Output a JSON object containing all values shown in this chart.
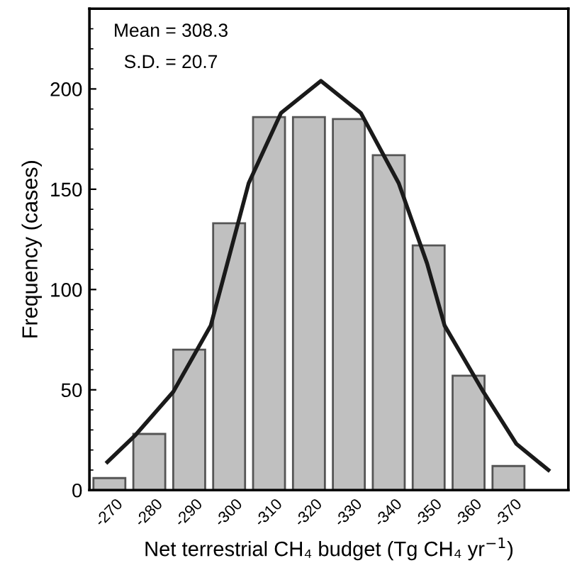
{
  "chart_data": {
    "type": "bar",
    "xlabel": "Net terrestrial CH₄ budget (Tg CH₄ yr$^{−1}$)",
    "ylabel": "Frequency (cases)",
    "annotations": [
      "Mean = 308.3",
      "S.D. = 20.7"
    ],
    "x": [
      -270,
      -280,
      -290,
      -300,
      -310,
      -320,
      -330,
      -340,
      -350,
      -360,
      -370
    ],
    "series": [
      {
        "color": "#c0c0c0",
        "values": [
          6,
          28,
          70,
          133,
          186,
          186,
          185,
          167,
          122,
          57,
          12
        ]
      },
      {
        "type": "line",
        "color": "#1a1a1a",
        "x": [
          -269.5,
          -276.6,
          -286,
          -295.4,
          -304.9,
          -313,
          -323,
          -333,
          -342.5,
          -349.6,
          -354,
          -363.7,
          -372,
          -380
        ],
        "values": [
          14,
          27.6,
          49,
          82,
          153,
          188,
          204,
          188,
          153,
          113,
          82,
          49,
          23,
          10
        ]
      }
    ],
    "xlim": [
      -265,
      -385
    ],
    "xticks": [
      -270,
      -280,
      -290,
      -300,
      -310,
      -320,
      -330,
      -340,
      -350,
      -360,
      -370
    ],
    "ylim": [
      0,
      240
    ],
    "yticks": [
      0,
      50,
      100,
      150,
      200
    ],
    "grid": false,
    "legend": false,
    "marker": "none",
    "line_style": "solid"
  }
}
